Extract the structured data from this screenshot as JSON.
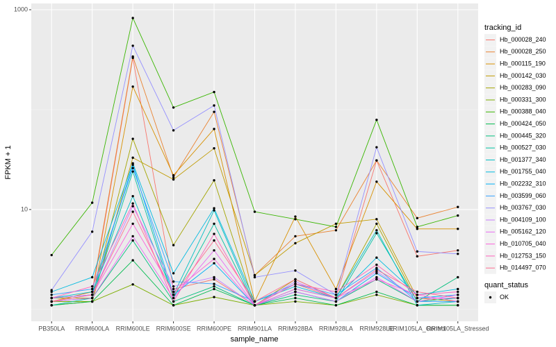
{
  "chart_data": {
    "type": "line",
    "y_label": "FPKM + 1",
    "x_label": "sample_name",
    "log_y": true,
    "grid": true,
    "legend_position": "right",
    "legend_title": "tracking_id",
    "point_legend_title": "quant_status",
    "point_legend_labels": [
      "OK"
    ],
    "point_color": "#000000",
    "ylim": [
      0.76,
      1155
    ],
    "yticks": [
      10,
      1000
    ],
    "yminor": [
      1,
      100
    ],
    "categories": [
      "PB350LA",
      "RRIM600LA",
      "RRIM600LE",
      "RRIM600SE",
      "RRIM600PE",
      "RRIM901LA",
      "RRIM928BA",
      "RRIM928LA",
      "RRIM928LE",
      "RRIM105LA_Control",
      "RRIM105LA_Stressed"
    ],
    "series": [
      {
        "name": "Hb_000028_240",
        "color": "#F8766D",
        "values": [
          1.3,
          1.4,
          330,
          1.6,
          2.0,
          1.1,
          1.8,
          1.3,
          31,
          3.4,
          3.9
        ]
      },
      {
        "name": "Hb_000028_250",
        "color": "#EA8331",
        "values": [
          1.2,
          1.5,
          340,
          21,
          95,
          2.2,
          5.4,
          6.2,
          31,
          8.2,
          10.6
        ]
      },
      {
        "name": "Hb_000115_190",
        "color": "#D89000",
        "values": [
          1.1,
          1.2,
          170,
          22,
          64,
          1.2,
          8.5,
          1.6,
          19,
          6.4,
          6.4
        ]
      },
      {
        "name": "Hb_000142_030",
        "color": "#C09B00",
        "values": [
          1.2,
          1.2,
          33,
          20,
          41,
          2.2,
          4.6,
          7.2,
          8.0,
          1.3,
          1.2
        ]
      },
      {
        "name": "Hb_000283_090",
        "color": "#A3A500",
        "values": [
          1.3,
          1.3,
          51,
          4.4,
          19.6,
          1.1,
          2.0,
          1.3,
          7.2,
          1.2,
          1.3
        ]
      },
      {
        "name": "Hb_000331_300",
        "color": "#7CAE00",
        "values": [
          1.2,
          1.2,
          1.78,
          1.1,
          1.33,
          1.1,
          1.2,
          1.1,
          1.4,
          1.1,
          1.1
        ]
      },
      {
        "name": "Hb_000388_040",
        "color": "#39B600",
        "values": [
          3.5,
          11.7,
          826,
          105,
          150,
          9.5,
          8.0,
          6.7,
          79,
          6.7,
          8.7
        ]
      },
      {
        "name": "Hb_000424_050",
        "color": "#00BB4E",
        "values": [
          1.1,
          1.2,
          3.1,
          1.1,
          1.6,
          1.1,
          1.3,
          1.1,
          1.5,
          1.1,
          1.1
        ]
      },
      {
        "name": "Hb_000445_320",
        "color": "#00BF7D",
        "values": [
          1.2,
          1.3,
          4.9,
          1.2,
          1.7,
          1.1,
          1.4,
          1.2,
          2.0,
          1.2,
          2.1
        ]
      },
      {
        "name": "Hb_000527_030",
        "color": "#00C1A3",
        "values": [
          1.1,
          1.3,
          24,
          1.3,
          7.2,
          1.1,
          1.5,
          1.2,
          5.8,
          1.2,
          1.3
        ]
      },
      {
        "name": "Hb_001377_340",
        "color": "#00BFC4",
        "values": [
          1.3,
          1.5,
          13.6,
          1.4,
          9.8,
          1.1,
          1.6,
          1.3,
          6.2,
          1.1,
          1.2
        ]
      },
      {
        "name": "Hb_001755_040",
        "color": "#00BAE0",
        "values": [
          1.5,
          2.1,
          29,
          2.3,
          10.3,
          1.2,
          1.7,
          1.3,
          3.3,
          1.4,
          1.6
        ]
      },
      {
        "name": "Hb_002232_310",
        "color": "#00B0F6",
        "values": [
          1.3,
          1.4,
          28,
          1.4,
          2.9,
          1.1,
          1.5,
          1.2,
          2.3,
          1.3,
          1.4
        ]
      },
      {
        "name": "Hb_003599_060",
        "color": "#35A2FF",
        "values": [
          1.4,
          1.6,
          26,
          1.9,
          1.8,
          1.2,
          1.8,
          1.4,
          2.6,
          1.2,
          1.2
        ]
      },
      {
        "name": "Hb_003767_030",
        "color": "#9590FF",
        "values": [
          1.56,
          6.0,
          436,
          62,
          110,
          2.1,
          2.45,
          1.4,
          42,
          3.8,
          3.6
        ]
      },
      {
        "name": "Hb_004109_100",
        "color": "#C77CFF",
        "values": [
          1.3,
          1.4,
          10.8,
          1.7,
          2.1,
          1.1,
          1.9,
          1.3,
          2.4,
          1.3,
          1.3
        ]
      },
      {
        "name": "Hb_005162_120",
        "color": "#E76BF3",
        "values": [
          1.2,
          1.3,
          5.4,
          1.3,
          3.9,
          1.1,
          1.5,
          1.2,
          2.1,
          1.2,
          1.4
        ]
      },
      {
        "name": "Hb_010705_040",
        "color": "#FA62DB",
        "values": [
          1.2,
          1.4,
          7.2,
          1.5,
          3.2,
          1.1,
          1.6,
          1.3,
          2.0,
          1.4,
          1.2
        ]
      },
      {
        "name": "Hb_012753_150",
        "color": "#FF62BC",
        "values": [
          1.3,
          1.7,
          11.5,
          1.2,
          5.7,
          1.1,
          1.8,
          1.5,
          2.8,
          1.4,
          1.5
        ]
      },
      {
        "name": "Hb_014497_070",
        "color": "#FF6C91",
        "values": [
          1.2,
          1.4,
          9.5,
          1.4,
          4.9,
          1.2,
          2.0,
          1.3,
          2.5,
          1.5,
          1.3
        ]
      }
    ]
  }
}
